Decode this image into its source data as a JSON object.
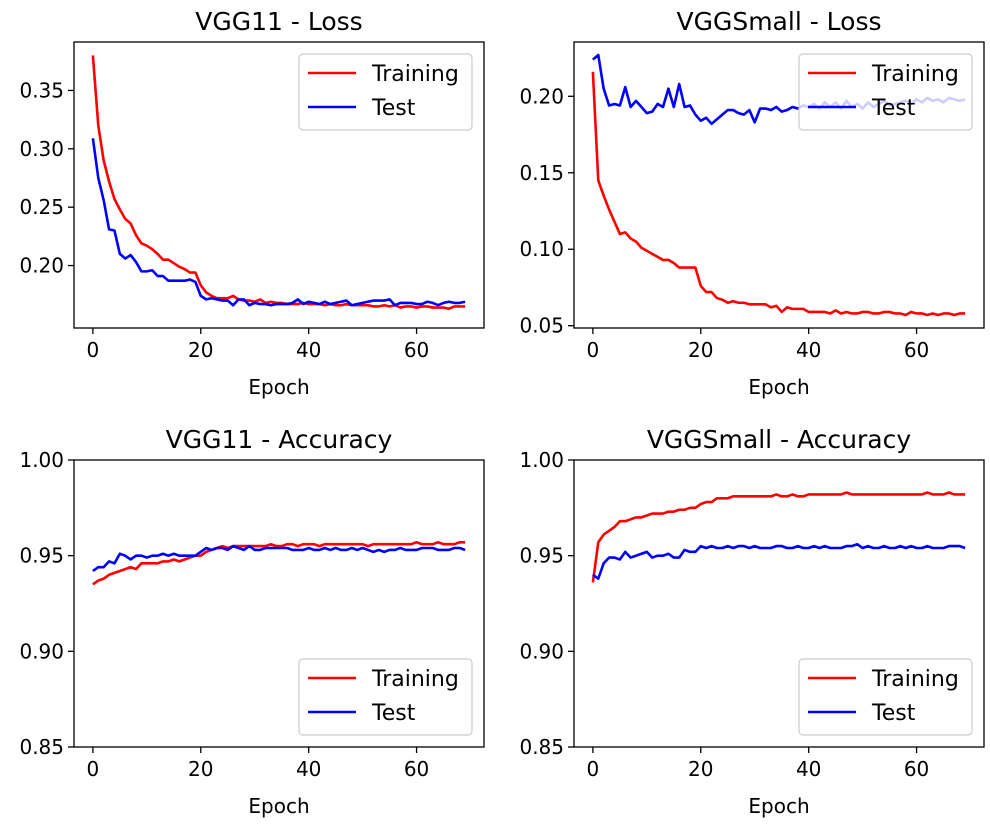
{
  "chart_data": [
    {
      "type": "line",
      "title": "VGG11 - Loss",
      "xlabel": "Epoch",
      "ylabel": "",
      "xlim": [
        -3.5,
        72.5
      ],
      "ylim": [
        0.1465,
        0.3915
      ],
      "xticks": [
        0,
        20,
        40,
        60
      ],
      "xtick_labels": [
        "0",
        "20",
        "40",
        "60"
      ],
      "yticks": [
        0.2,
        0.25,
        0.3,
        0.35
      ],
      "ytick_labels": [
        "0.20",
        "0.25",
        "0.30",
        "0.35"
      ],
      "legend_position": "top-right",
      "series": [
        {
          "name": "Training",
          "color": "#ff0000",
          "values": [
            0.38,
            0.32,
            0.29,
            0.272,
            0.257,
            0.248,
            0.24,
            0.236,
            0.226,
            0.219,
            0.217,
            0.214,
            0.21,
            0.205,
            0.205,
            0.202,
            0.199,
            0.197,
            0.194,
            0.194,
            0.183,
            0.177,
            0.174,
            0.172,
            0.172,
            0.172,
            0.174,
            0.171,
            0.17,
            0.17,
            0.169,
            0.171,
            0.168,
            0.169,
            0.168,
            0.168,
            0.167,
            0.167,
            0.167,
            0.168,
            0.167,
            0.167,
            0.167,
            0.166,
            0.167,
            0.166,
            0.166,
            0.167,
            0.166,
            0.166,
            0.166,
            0.166,
            0.165,
            0.165,
            0.166,
            0.165,
            0.166,
            0.164,
            0.165,
            0.165,
            0.164,
            0.165,
            0.165,
            0.164,
            0.164,
            0.164,
            0.163,
            0.165,
            0.165,
            0.165
          ]
        },
        {
          "name": "Test",
          "color": "#0000ff",
          "values": [
            0.309,
            0.275,
            0.256,
            0.231,
            0.23,
            0.21,
            0.206,
            0.209,
            0.203,
            0.195,
            0.195,
            0.196,
            0.191,
            0.191,
            0.187,
            0.187,
            0.187,
            0.187,
            0.188,
            0.186,
            0.174,
            0.171,
            0.172,
            0.171,
            0.17,
            0.17,
            0.166,
            0.171,
            0.171,
            0.166,
            0.168,
            0.167,
            0.167,
            0.166,
            0.167,
            0.167,
            0.167,
            0.168,
            0.171,
            0.167,
            0.169,
            0.168,
            0.167,
            0.169,
            0.167,
            0.168,
            0.169,
            0.17,
            0.166,
            0.167,
            0.168,
            0.169,
            0.17,
            0.17,
            0.17,
            0.171,
            0.166,
            0.168,
            0.168,
            0.168,
            0.167,
            0.167,
            0.169,
            0.168,
            0.166,
            0.168,
            0.169,
            0.168,
            0.168,
            0.169
          ]
        }
      ]
    },
    {
      "type": "line",
      "title": "VGGSmall - Loss",
      "xlabel": "Epoch",
      "ylabel": "",
      "xlim": [
        -3.5,
        72.5
      ],
      "ylim": [
        0.0485,
        0.2355
      ],
      "xticks": [
        0,
        20,
        40,
        60
      ],
      "xtick_labels": [
        "0",
        "20",
        "40",
        "60"
      ],
      "yticks": [
        0.05,
        0.1,
        0.15,
        0.2
      ],
      "ytick_labels": [
        "0.05",
        "0.10",
        "0.15",
        "0.20"
      ],
      "legend_position": "top-right",
      "series": [
        {
          "name": "Training",
          "color": "#ff0000",
          "values": [
            0.216,
            0.145,
            0.135,
            0.126,
            0.118,
            0.11,
            0.111,
            0.107,
            0.105,
            0.101,
            0.099,
            0.097,
            0.095,
            0.093,
            0.093,
            0.091,
            0.088,
            0.088,
            0.088,
            0.088,
            0.076,
            0.072,
            0.072,
            0.068,
            0.067,
            0.065,
            0.066,
            0.065,
            0.065,
            0.064,
            0.064,
            0.064,
            0.064,
            0.062,
            0.063,
            0.059,
            0.062,
            0.061,
            0.061,
            0.061,
            0.059,
            0.059,
            0.059,
            0.059,
            0.058,
            0.06,
            0.058,
            0.059,
            0.058,
            0.058,
            0.059,
            0.059,
            0.058,
            0.058,
            0.059,
            0.059,
            0.058,
            0.058,
            0.057,
            0.059,
            0.058,
            0.058,
            0.057,
            0.058,
            0.057,
            0.058,
            0.058,
            0.057,
            0.058,
            0.058
          ]
        },
        {
          "name": "Test",
          "color": "#0000ff",
          "values": [
            0.224,
            0.227,
            0.205,
            0.194,
            0.195,
            0.194,
            0.206,
            0.193,
            0.197,
            0.193,
            0.189,
            0.19,
            0.195,
            0.193,
            0.205,
            0.193,
            0.208,
            0.193,
            0.194,
            0.188,
            0.184,
            0.186,
            0.182,
            0.185,
            0.188,
            0.191,
            0.191,
            0.189,
            0.188,
            0.191,
            0.183,
            0.192,
            0.192,
            0.191,
            0.193,
            0.19,
            0.191,
            0.193,
            0.192,
            0.194,
            0.193,
            0.195,
            0.192,
            0.196,
            0.193,
            0.196,
            0.192,
            0.197,
            0.193,
            0.195,
            0.192,
            0.196,
            0.193,
            0.195,
            0.197,
            0.194,
            0.195,
            0.196,
            0.197,
            0.195,
            0.198,
            0.196,
            0.199,
            0.197,
            0.198,
            0.196,
            0.199,
            0.198,
            0.197,
            0.198
          ]
        }
      ]
    },
    {
      "type": "line",
      "title": "VGG11 - Accuracy",
      "xlabel": "Epoch",
      "ylabel": "",
      "xlim": [
        -3.5,
        72.5
      ],
      "ylim": [
        0.85,
        1.0
      ],
      "xticks": [
        0,
        20,
        40,
        60
      ],
      "xtick_labels": [
        "0",
        "20",
        "40",
        "60"
      ],
      "yticks": [
        0.85,
        0.9,
        0.95,
        1.0
      ],
      "ytick_labels": [
        "0.85",
        "0.90",
        "0.95",
        "1.00"
      ],
      "legend_position": "bottom-right",
      "series": [
        {
          "name": "Training",
          "color": "#ff0000",
          "values": [
            0.935,
            0.937,
            0.938,
            0.94,
            0.941,
            0.942,
            0.943,
            0.944,
            0.943,
            0.946,
            0.946,
            0.946,
            0.946,
            0.947,
            0.947,
            0.948,
            0.947,
            0.948,
            0.949,
            0.95,
            0.95,
            0.952,
            0.953,
            0.954,
            0.955,
            0.954,
            0.955,
            0.955,
            0.955,
            0.955,
            0.955,
            0.955,
            0.955,
            0.956,
            0.955,
            0.955,
            0.956,
            0.956,
            0.955,
            0.956,
            0.956,
            0.956,
            0.955,
            0.956,
            0.956,
            0.956,
            0.956,
            0.956,
            0.956,
            0.956,
            0.956,
            0.955,
            0.956,
            0.956,
            0.956,
            0.956,
            0.956,
            0.956,
            0.956,
            0.956,
            0.957,
            0.956,
            0.956,
            0.956,
            0.957,
            0.956,
            0.956,
            0.956,
            0.957,
            0.957
          ]
        },
        {
          "name": "Test",
          "color": "#0000ff",
          "values": [
            0.942,
            0.944,
            0.944,
            0.947,
            0.946,
            0.951,
            0.95,
            0.948,
            0.95,
            0.95,
            0.949,
            0.95,
            0.95,
            0.951,
            0.95,
            0.951,
            0.95,
            0.95,
            0.95,
            0.95,
            0.952,
            0.954,
            0.953,
            0.954,
            0.954,
            0.953,
            0.955,
            0.954,
            0.953,
            0.955,
            0.953,
            0.953,
            0.954,
            0.954,
            0.954,
            0.954,
            0.954,
            0.953,
            0.953,
            0.953,
            0.954,
            0.953,
            0.953,
            0.954,
            0.953,
            0.954,
            0.953,
            0.953,
            0.954,
            0.953,
            0.954,
            0.953,
            0.952,
            0.953,
            0.952,
            0.953,
            0.953,
            0.954,
            0.953,
            0.953,
            0.953,
            0.954,
            0.954,
            0.954,
            0.953,
            0.953,
            0.953,
            0.954,
            0.954,
            0.953
          ]
        }
      ]
    },
    {
      "type": "line",
      "title": "VGGSmall - Accuracy",
      "xlabel": "Epoch",
      "ylabel": "",
      "xlim": [
        -3.5,
        72.5
      ],
      "ylim": [
        0.85,
        1.0
      ],
      "xticks": [
        0,
        20,
        40,
        60
      ],
      "xtick_labels": [
        "0",
        "20",
        "40",
        "60"
      ],
      "yticks": [
        0.85,
        0.9,
        0.95,
        1.0
      ],
      "ytick_labels": [
        "0.85",
        "0.90",
        "0.95",
        "1.00"
      ],
      "legend_position": "bottom-right",
      "series": [
        {
          "name": "Training",
          "color": "#ff0000",
          "values": [
            0.936,
            0.957,
            0.961,
            0.963,
            0.965,
            0.968,
            0.968,
            0.969,
            0.97,
            0.97,
            0.971,
            0.972,
            0.972,
            0.972,
            0.973,
            0.973,
            0.974,
            0.974,
            0.975,
            0.975,
            0.977,
            0.978,
            0.978,
            0.98,
            0.98,
            0.98,
            0.981,
            0.981,
            0.981,
            0.981,
            0.981,
            0.981,
            0.981,
            0.981,
            0.982,
            0.981,
            0.981,
            0.982,
            0.981,
            0.981,
            0.982,
            0.982,
            0.982,
            0.982,
            0.982,
            0.982,
            0.982,
            0.983,
            0.982,
            0.982,
            0.982,
            0.982,
            0.982,
            0.982,
            0.982,
            0.982,
            0.982,
            0.982,
            0.982,
            0.982,
            0.982,
            0.982,
            0.983,
            0.982,
            0.982,
            0.982,
            0.983,
            0.982,
            0.982,
            0.982
          ]
        },
        {
          "name": "Test",
          "color": "#0000ff",
          "values": [
            0.94,
            0.938,
            0.946,
            0.949,
            0.949,
            0.948,
            0.952,
            0.949,
            0.95,
            0.951,
            0.952,
            0.949,
            0.95,
            0.95,
            0.951,
            0.949,
            0.949,
            0.953,
            0.952,
            0.952,
            0.955,
            0.954,
            0.955,
            0.954,
            0.954,
            0.955,
            0.954,
            0.955,
            0.955,
            0.954,
            0.955,
            0.954,
            0.954,
            0.954,
            0.955,
            0.955,
            0.954,
            0.954,
            0.955,
            0.954,
            0.954,
            0.955,
            0.954,
            0.955,
            0.954,
            0.954,
            0.954,
            0.955,
            0.955,
            0.956,
            0.954,
            0.955,
            0.954,
            0.954,
            0.955,
            0.954,
            0.954,
            0.955,
            0.954,
            0.955,
            0.954,
            0.954,
            0.955,
            0.954,
            0.954,
            0.954,
            0.955,
            0.955,
            0.955,
            0.954
          ]
        }
      ]
    }
  ]
}
